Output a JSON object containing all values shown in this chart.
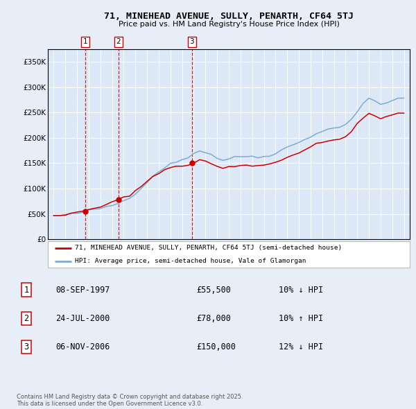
{
  "title": "71, MINEHEAD AVENUE, SULLY, PENARTH, CF64 5TJ",
  "subtitle": "Price paid vs. HM Land Registry's House Price Index (HPI)",
  "background_color": "#e8eef8",
  "plot_bg_color": "#dce8f5",
  "sale_line_color": "#cc0000",
  "hpi_line_color": "#7aadd4",
  "sales": [
    {
      "date_num": 1997.69,
      "price": 55500,
      "label": "1",
      "pct": "10%",
      "dir": "↓",
      "date_str": "08-SEP-1997"
    },
    {
      "date_num": 2000.56,
      "price": 78000,
      "label": "2",
      "pct": "10%",
      "dir": "↑",
      "date_str": "24-JUL-2000"
    },
    {
      "date_num": 2006.85,
      "price": 150000,
      "label": "3",
      "pct": "12%",
      "dir": "↓",
      "date_str": "06-NOV-2006"
    }
  ],
  "legend_line1": "71, MINEHEAD AVENUE, SULLY, PENARTH, CF64 5TJ (semi-detached house)",
  "legend_line2": "HPI: Average price, semi-detached house, Vale of Glamorgan",
  "copyright": "Contains HM Land Registry data © Crown copyright and database right 2025.\nThis data is licensed under the Open Government Licence v3.0.",
  "yticks": [
    0,
    50000,
    100000,
    150000,
    200000,
    250000,
    300000,
    350000
  ],
  "ytick_labels": [
    "£0",
    "£50K",
    "£100K",
    "£150K",
    "£200K",
    "£250K",
    "£300K",
    "£350K"
  ],
  "ylim": [
    0,
    375000
  ],
  "xlim": [
    1994.5,
    2025.5
  ],
  "hpi_values": [
    46000,
    47000,
    48000,
    49500,
    51000,
    53500,
    56000,
    58500,
    61000,
    64000,
    67000,
    71000,
    76000,
    83000,
    91000,
    101000,
    113000,
    124000,
    134000,
    142000,
    148000,
    152000,
    157000,
    162000,
    170000,
    174000,
    172000,
    167000,
    160000,
    156000,
    159000,
    161000,
    163000,
    164000,
    163000,
    162000,
    163000,
    166000,
    170000,
    176000,
    181000,
    186000,
    191000,
    197000,
    203000,
    209000,
    213000,
    216000,
    219000,
    223000,
    226000,
    237000,
    252000,
    267000,
    277000,
    272000,
    267000,
    269000,
    273000,
    277000,
    279000
  ],
  "years_hpi": [
    1995.0,
    1995.5,
    1996.0,
    1996.5,
    1997.0,
    1997.5,
    1998.0,
    1998.5,
    1999.0,
    1999.5,
    2000.0,
    2000.5,
    2001.0,
    2001.5,
    2002.0,
    2002.5,
    2003.0,
    2003.5,
    2004.0,
    2004.5,
    2005.0,
    2005.5,
    2006.0,
    2006.5,
    2007.0,
    2007.5,
    2008.0,
    2008.5,
    2009.0,
    2009.5,
    2010.0,
    2010.5,
    2011.0,
    2011.5,
    2012.0,
    2012.5,
    2013.0,
    2013.5,
    2014.0,
    2014.5,
    2015.0,
    2015.5,
    2016.0,
    2016.5,
    2017.0,
    2017.5,
    2018.0,
    2018.5,
    2019.0,
    2019.5,
    2020.0,
    2020.5,
    2021.0,
    2021.5,
    2022.0,
    2022.5,
    2023.0,
    2023.5,
    2024.0,
    2024.5,
    2025.0
  ]
}
